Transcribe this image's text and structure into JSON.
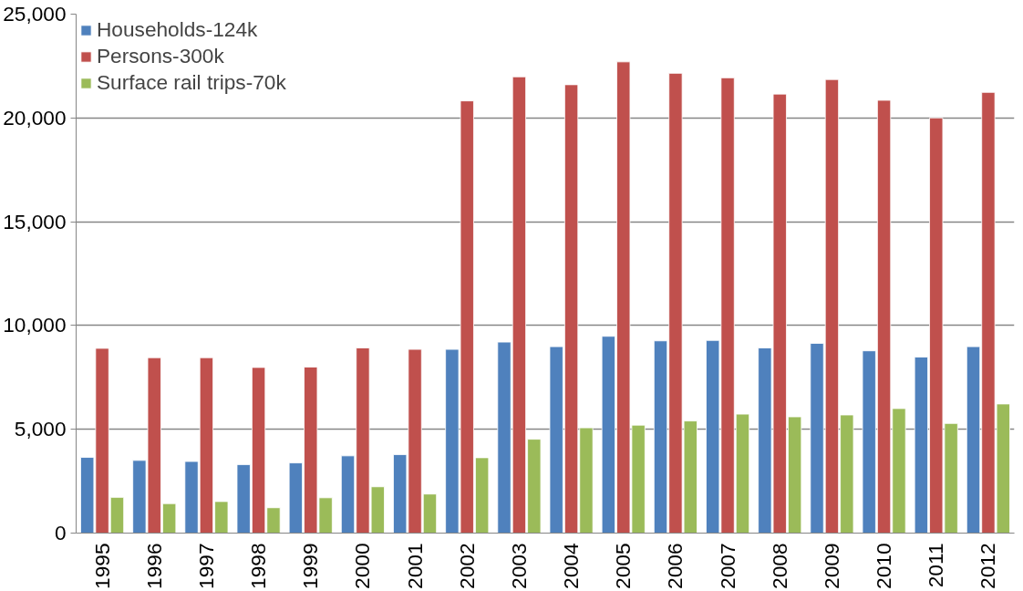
{
  "chart_data": {
    "type": "bar",
    "categories": [
      "1995",
      "1996",
      "1997",
      "1998",
      "1999",
      "2000",
      "2001",
      "2002",
      "2003",
      "2004",
      "2005",
      "2006",
      "2007",
      "2008",
      "2009",
      "2010",
      "2011",
      "2012"
    ],
    "series": [
      {
        "name": "Households-124k",
        "color": "#4f81bd",
        "values": [
          3650,
          3500,
          3450,
          3300,
          3380,
          3720,
          3780,
          8850,
          9200,
          8980,
          9480,
          9260,
          9280,
          8920,
          9140,
          8780,
          8480,
          8980
        ]
      },
      {
        "name": "Persons-300k",
        "color": "#c0504d",
        "values": [
          8900,
          8450,
          8450,
          7980,
          8000,
          8920,
          8850,
          20820,
          21980,
          21600,
          22700,
          22150,
          21930,
          21150,
          21850,
          20850,
          20000,
          21230
        ]
      },
      {
        "name": "Surface rail trips-70k",
        "color": "#9bbb59",
        "values": [
          1720,
          1420,
          1520,
          1220,
          1700,
          2230,
          1880,
          3630,
          4520,
          5070,
          5200,
          5400,
          5730,
          5600,
          5690,
          6000,
          5280,
          6220
        ]
      }
    ],
    "ylim": [
      0,
      25000
    ],
    "yticks": [
      {
        "value": 0,
        "label": "0"
      },
      {
        "value": 5000,
        "label": "5,000"
      },
      {
        "value": 10000,
        "label": "10,000"
      },
      {
        "value": 15000,
        "label": "15,000"
      },
      {
        "value": 20000,
        "label": "20,000"
      },
      {
        "value": 25000,
        "label": "25,000"
      }
    ],
    "grid": "y",
    "legend": "top left"
  }
}
